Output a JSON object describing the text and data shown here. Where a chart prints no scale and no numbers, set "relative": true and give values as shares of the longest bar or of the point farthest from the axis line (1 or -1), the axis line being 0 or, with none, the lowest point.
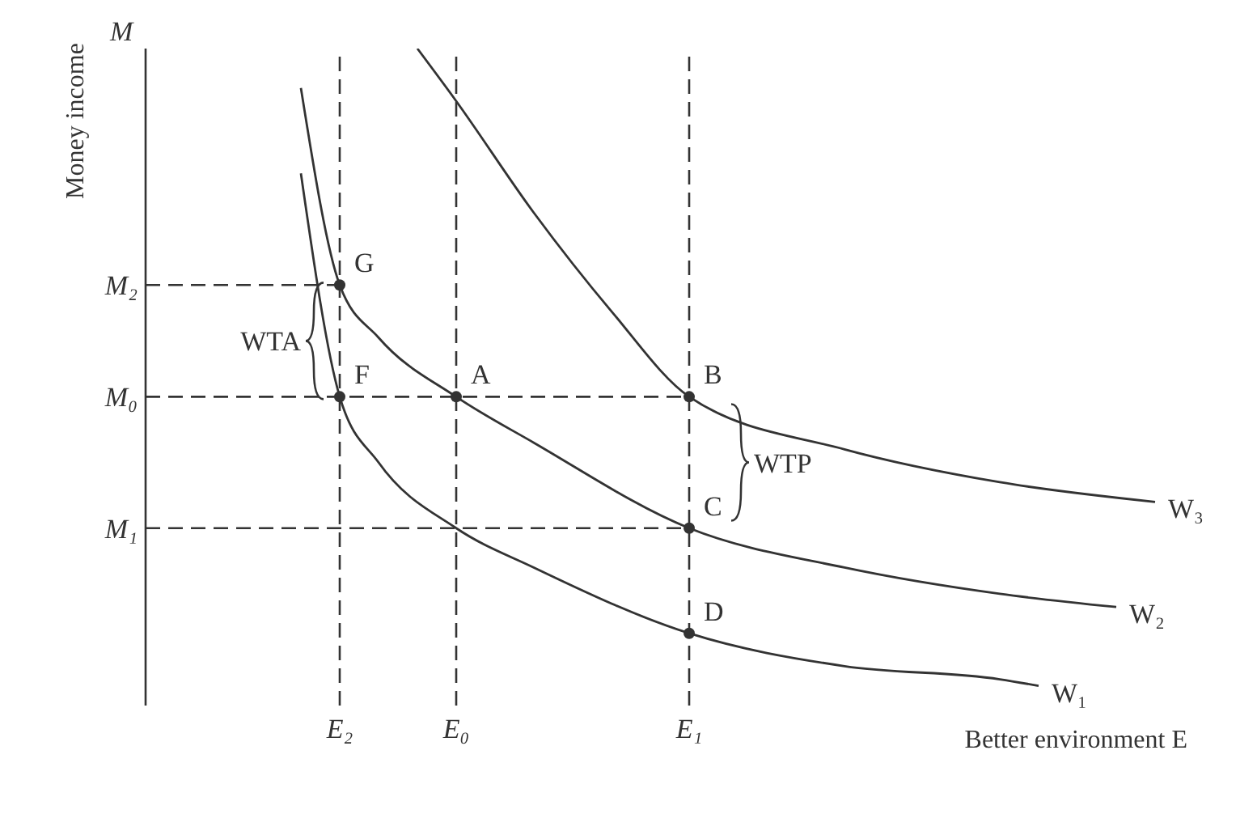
{
  "chart_data": {
    "type": "line",
    "relative": true,
    "xlabel": "Better environment E",
    "ylabel": "Money income",
    "categories": [
      null,
      null,
      null,
      null,
      null,
      "E₂",
      null,
      null,
      "E₀",
      null,
      null,
      null,
      null,
      null,
      "E₁",
      null,
      null,
      null,
      null,
      null,
      null,
      null,
      null,
      null,
      null,
      null,
      null,
      null
    ],
    "series": [
      {
        "name": "W₁",
        "color": "#333333",
        "values": [
          null,
          null,
          null,
          null,
          0.81,
          0.47,
          0.37,
          null,
          0.27,
          null,
          0.21,
          null,
          null,
          null,
          0.11,
          null,
          null,
          null,
          0.06,
          null,
          null,
          null,
          0.04,
          0.03,
          null,
          null,
          null,
          null
        ]
      },
      {
        "name": "W₂",
        "color": "#333333",
        "values": [
          null,
          null,
          null,
          null,
          0.94,
          0.64,
          0.56,
          null,
          0.47,
          null,
          0.4,
          null,
          null,
          null,
          0.27,
          null,
          null,
          null,
          0.21,
          null,
          null,
          null,
          0.17,
          null,
          null,
          0.15,
          null,
          null
        ]
      },
      {
        "name": "W₃",
        "color": "#333333",
        "values": [
          null,
          null,
          null,
          null,
          null,
          null,
          null,
          1,
          0.92,
          null,
          0.75,
          null,
          0.6,
          null,
          0.47,
          null,
          null,
          null,
          0.39,
          null,
          null,
          null,
          0.34,
          null,
          null,
          null,
          0.31,
          null
        ]
      },
      {
        "type": "scatter",
        "color": "#333333",
        "marker": "circle",
        "x": [
          "E₂",
          "E₂",
          "E₀",
          "E₁",
          "E₁",
          "E₁"
        ],
        "values": [
          0.64,
          0.47,
          0.47,
          0.47,
          0.27,
          0.11
        ]
      }
    ],
    "ref_lines": [
      {
        "axis": "y",
        "value": 0.64,
        "label": "M₂",
        "line_style": "dashed",
        "color": "#333333"
      },
      {
        "axis": "y",
        "value": 0.47,
        "label": "M₀",
        "line_style": "dashed",
        "color": "#333333"
      },
      {
        "axis": "y",
        "value": 0.27,
        "label": "M₁",
        "line_style": "dashed",
        "color": "#333333"
      },
      {
        "axis": "x",
        "value": "E₂",
        "line_style": "dashed",
        "color": "#333333"
      },
      {
        "axis": "x",
        "value": "E₀",
        "line_style": "dashed",
        "color": "#333333"
      },
      {
        "axis": "x",
        "value": "E₁",
        "line_style": "dashed",
        "color": "#333333"
      }
    ],
    "annotations": [
      "M",
      {
        "text": "G",
        "x": "E₂",
        "y": 0.64
      },
      {
        "text": "F",
        "x": "E₂",
        "y": 0.47
      },
      {
        "text": "A",
        "x": "E₀",
        "y": 0.47
      },
      {
        "text": "B",
        "x": "E₁",
        "y": 0.47
      },
      {
        "text": "C",
        "x": "E₁",
        "y": 0.27
      },
      {
        "text": "D",
        "x": "E₁",
        "y": 0.11
      },
      "WTA",
      "WTP"
    ],
    "marker": "none",
    "line_style": "solid",
    "grid": false,
    "legend": false
  }
}
